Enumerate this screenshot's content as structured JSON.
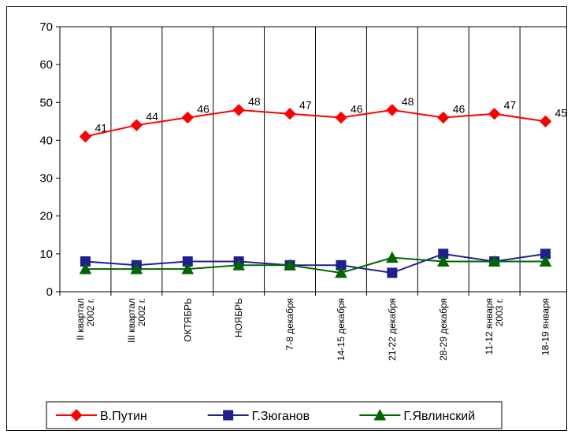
{
  "chart_data": {
    "type": "line",
    "title": "",
    "xlabel": "",
    "ylabel": "",
    "ylim": [
      0,
      70
    ],
    "yticks": [
      0,
      10,
      20,
      30,
      40,
      50,
      60,
      70
    ],
    "grid": {
      "vertical": true,
      "horizontal": false
    },
    "legend_position": "bottom",
    "categories": [
      "II квартал 2002 г.",
      "III квартал 2002 г.",
      "ОКТЯБРЬ",
      "НОЯБРЬ",
      "7-8 декабря",
      "14-15 декабря",
      "21-22 декабря",
      "28-29 декабря",
      "11-12 января 2003 г.",
      "18-19 января"
    ],
    "category_label_lines": [
      [
        "II квартал",
        "2002 г."
      ],
      [
        "III квартал",
        "2002 г."
      ],
      [
        "ОКТЯБРЬ"
      ],
      [
        "НОЯБРЬ"
      ],
      [
        "7-8 декабря"
      ],
      [
        "14-15 декабря"
      ],
      [
        "21-22 декабря"
      ],
      [
        "28-29 декабря"
      ],
      [
        "11-12 января",
        "2003 г."
      ],
      [
        "18-19 января"
      ]
    ],
    "series": [
      {
        "name": "В.Путин",
        "color": "#ff0000",
        "marker": "diamond",
        "values": [
          41,
          44,
          46,
          48,
          47,
          46,
          48,
          46,
          47,
          45
        ],
        "data_labels": [
          "41",
          "44",
          "46",
          "48",
          "47",
          "46",
          "48",
          "46",
          "47",
          "45"
        ]
      },
      {
        "name": "Г.Зюганов",
        "color": "#1f1f8f",
        "marker": "square",
        "values": [
          8,
          7,
          8,
          8,
          7,
          7,
          5,
          10,
          8,
          10
        ]
      },
      {
        "name": "Г.Явлинский",
        "color": "#006600",
        "marker": "triangle",
        "values": [
          6,
          6,
          6,
          7,
          7,
          5,
          9,
          8,
          8,
          8
        ]
      }
    ]
  }
}
